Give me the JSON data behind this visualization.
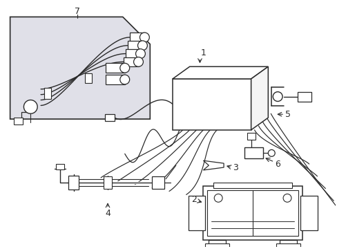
{
  "bg_color": "#ffffff",
  "line_color": "#2a2a2a",
  "box7_bg": "#e0e0e8",
  "figsize": [
    4.89,
    3.6
  ],
  "dpi": 100,
  "label_fs": 9
}
